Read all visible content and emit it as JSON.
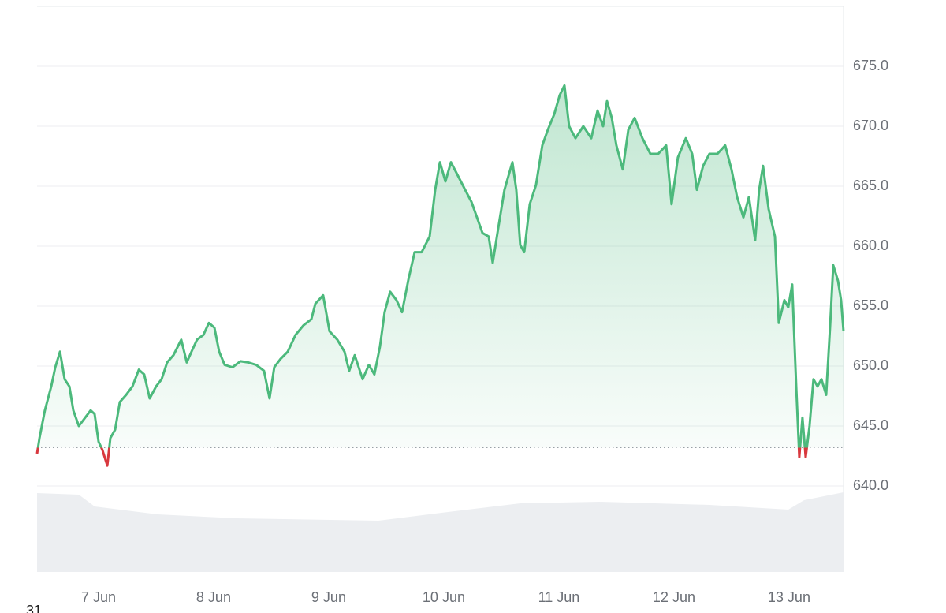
{
  "chart_data": {
    "type": "line",
    "x": [
      6.466,
      6.487,
      6.534,
      6.589,
      6.624,
      6.665,
      6.706,
      6.747,
      6.781,
      6.829,
      6.884,
      6.932,
      6.966,
      7.0,
      7.034,
      7.076,
      7.103,
      7.144,
      7.185,
      7.24,
      7.295,
      7.35,
      7.397,
      7.445,
      7.5,
      7.548,
      7.596,
      7.651,
      7.719,
      7.767,
      7.808,
      7.856,
      7.911,
      7.959,
      8.007,
      8.048,
      8.096,
      8.164,
      8.233,
      8.301,
      8.37,
      8.438,
      8.486,
      8.527,
      8.582,
      8.644,
      8.712,
      8.781,
      8.849,
      8.884,
      8.952,
      9.007,
      9.075,
      9.137,
      9.178,
      9.226,
      9.295,
      9.349,
      9.397,
      9.445,
      9.486,
      9.534,
      9.589,
      9.637,
      9.692,
      9.747,
      9.808,
      9.877,
      9.925,
      9.966,
      10.014,
      10.062,
      10.116,
      10.185,
      10.24,
      10.288,
      10.336,
      10.39,
      10.425,
      10.473,
      10.527,
      10.596,
      10.63,
      10.664,
      10.699,
      10.747,
      10.801,
      10.856,
      10.904,
      10.959,
      11.007,
      11.048,
      11.089,
      11.144,
      11.212,
      11.281,
      11.336,
      11.384,
      11.418,
      11.459,
      11.5,
      11.555,
      11.603,
      11.658,
      11.726,
      11.795,
      11.863,
      11.932,
      11.979,
      12.034,
      12.103,
      12.158,
      12.199,
      12.253,
      12.308,
      12.377,
      12.445,
      12.5,
      12.548,
      12.603,
      12.651,
      12.705,
      12.74,
      12.774,
      12.822,
      12.877,
      12.911,
      12.959,
      12.993,
      13.027,
      13.062,
      13.089,
      13.116,
      13.144,
      13.178,
      13.212,
      13.247,
      13.281,
      13.322,
      13.356,
      13.384,
      13.425,
      13.452,
      13.473
    ],
    "values": [
      642.7,
      644.0,
      646.3,
      648.3,
      649.9,
      651.2,
      648.9,
      648.3,
      646.3,
      645.0,
      645.7,
      646.3,
      646.0,
      643.7,
      643.0,
      641.7,
      644.0,
      644.7,
      647.0,
      647.6,
      648.3,
      649.7,
      649.3,
      647.3,
      648.3,
      648.9,
      650.3,
      650.9,
      652.2,
      650.3,
      651.2,
      652.2,
      652.6,
      653.6,
      653.2,
      651.2,
      650.1,
      649.9,
      650.4,
      650.3,
      650.1,
      649.6,
      647.3,
      649.9,
      650.6,
      651.2,
      652.6,
      653.4,
      653.9,
      655.2,
      655.9,
      652.9,
      652.2,
      651.2,
      649.6,
      650.9,
      648.9,
      650.1,
      649.3,
      651.6,
      654.5,
      656.2,
      655.5,
      654.5,
      657.2,
      659.5,
      659.5,
      660.8,
      664.7,
      667.0,
      665.4,
      667.0,
      666.0,
      664.7,
      663.7,
      662.4,
      661.1,
      660.8,
      658.6,
      661.5,
      664.7,
      667.0,
      664.7,
      660.1,
      659.5,
      663.5,
      665.1,
      668.4,
      669.7,
      671.0,
      672.6,
      673.4,
      670.0,
      669.0,
      670.0,
      669.0,
      671.3,
      670.0,
      672.1,
      670.7,
      668.4,
      666.4,
      669.7,
      670.7,
      669.0,
      667.7,
      667.7,
      668.4,
      663.5,
      667.4,
      669.0,
      667.7,
      664.7,
      666.7,
      667.7,
      667.7,
      668.4,
      666.4,
      664.1,
      662.4,
      664.1,
      660.5,
      664.7,
      666.7,
      663.1,
      660.8,
      653.6,
      655.5,
      654.9,
      656.8,
      648.3,
      642.4,
      645.7,
      642.4,
      645.0,
      648.9,
      648.3,
      648.9,
      647.6,
      653.2,
      658.4,
      657.1,
      655.5,
      652.9
    ],
    "color": "#4cb97c",
    "below_color": "#d8383e",
    "baseline": 643.2,
    "xlim": [
      6.466,
      13.473
    ],
    "xticks": [
      {
        "value": 7,
        "label": "7 Jun"
      },
      {
        "value": 8,
        "label": "8 Jun"
      },
      {
        "value": 9,
        "label": "9 Jun"
      },
      {
        "value": 10,
        "label": "10 Jun"
      },
      {
        "value": 11,
        "label": "11 Jun"
      },
      {
        "value": 12,
        "label": "12 Jun"
      },
      {
        "value": 13,
        "label": "13 Jun"
      }
    ],
    "ylim": [
      633,
      680
    ],
    "yticks": [
      {
        "value": 640,
        "label": "640.0"
      },
      {
        "value": 645,
        "label": "645.0"
      },
      {
        "value": 650,
        "label": "650.0"
      },
      {
        "value": 655,
        "label": "655.0"
      },
      {
        "value": 660,
        "label": "660.0"
      },
      {
        "value": 665,
        "label": "665.0"
      },
      {
        "value": 670,
        "label": "670.0"
      },
      {
        "value": 675,
        "label": "675.0"
      }
    ],
    "grid": true,
    "fragment": "31"
  }
}
